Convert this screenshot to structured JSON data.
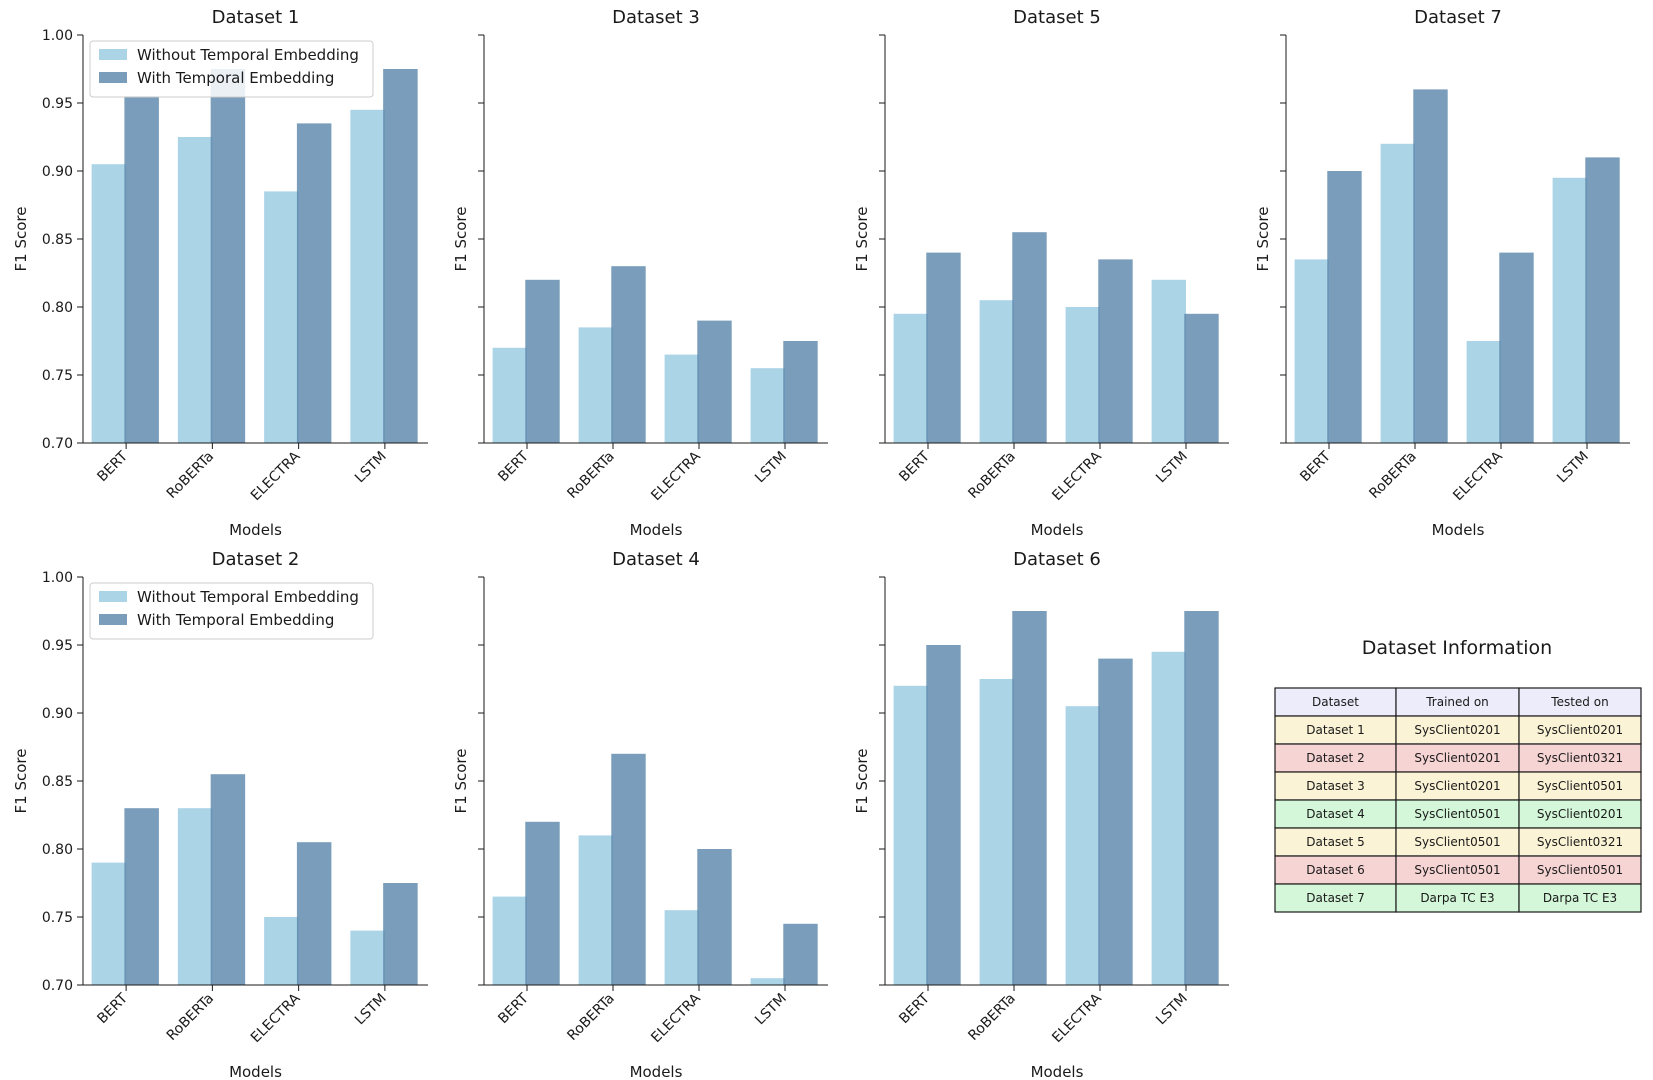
{
  "chart_data": [
    {
      "type": "bar",
      "title": "Dataset 1",
      "categories": [
        "BERT",
        "RoBERTa",
        "ELECTRA",
        "LSTM"
      ],
      "series": [
        {
          "name": "Without Temporal Embedding",
          "values": [
            0.905,
            0.925,
            0.885,
            0.945
          ]
        },
        {
          "name": "With Temporal Embedding",
          "values": [
            0.955,
            0.975,
            0.935,
            0.975
          ]
        }
      ],
      "xlabel": "Models",
      "ylabel": "F1 Score",
      "ylim": [
        0.7,
        1.0
      ],
      "yticks": [
        "0.70",
        "0.75",
        "0.80",
        "0.85",
        "0.90",
        "0.95",
        "1.00"
      ],
      "legend": "top-left"
    },
    {
      "type": "bar",
      "title": "Dataset 3",
      "categories": [
        "BERT",
        "RoBERTa",
        "ELECTRA",
        "LSTM"
      ],
      "series": [
        {
          "name": "Without Temporal Embedding",
          "values": [
            0.77,
            0.785,
            0.765,
            0.755
          ]
        },
        {
          "name": "With Temporal Embedding",
          "values": [
            0.82,
            0.83,
            0.79,
            0.775
          ]
        }
      ],
      "xlabel": "Models",
      "ylabel": "F1 Score",
      "ylim": [
        0.7,
        1.0
      ]
    },
    {
      "type": "bar",
      "title": "Dataset 5",
      "categories": [
        "BERT",
        "RoBERTa",
        "ELECTRA",
        "LSTM"
      ],
      "series": [
        {
          "name": "Without Temporal Embedding",
          "values": [
            0.795,
            0.805,
            0.8,
            0.82
          ]
        },
        {
          "name": "With Temporal Embedding",
          "values": [
            0.84,
            0.855,
            0.835,
            0.795
          ]
        }
      ],
      "xlabel": "Models",
      "ylabel": "F1 Score",
      "ylim": [
        0.7,
        1.0
      ]
    },
    {
      "type": "bar",
      "title": "Dataset 7",
      "categories": [
        "BERT",
        "RoBERTa",
        "ELECTRA",
        "LSTM"
      ],
      "series": [
        {
          "name": "Without Temporal Embedding",
          "values": [
            0.835,
            0.92,
            0.775,
            0.895
          ]
        },
        {
          "name": "With Temporal Embedding",
          "values": [
            0.9,
            0.96,
            0.84,
            0.91
          ]
        }
      ],
      "xlabel": "Models",
      "ylabel": "F1 Score",
      "ylim": [
        0.7,
        1.0
      ]
    },
    {
      "type": "bar",
      "title": "Dataset 2",
      "categories": [
        "BERT",
        "RoBERTa",
        "ELECTRA",
        "LSTM"
      ],
      "series": [
        {
          "name": "Without Temporal Embedding",
          "values": [
            0.79,
            0.83,
            0.75,
            0.74
          ]
        },
        {
          "name": "With Temporal Embedding",
          "values": [
            0.83,
            0.855,
            0.805,
            0.775
          ]
        }
      ],
      "xlabel": "Models",
      "ylabel": "F1 Score",
      "ylim": [
        0.7,
        1.0
      ],
      "yticks": [
        "0.70",
        "0.75",
        "0.80",
        "0.85",
        "0.90",
        "0.95",
        "1.00"
      ],
      "legend": "top-left"
    },
    {
      "type": "bar",
      "title": "Dataset 4",
      "categories": [
        "BERT",
        "RoBERTa",
        "ELECTRA",
        "LSTM"
      ],
      "series": [
        {
          "name": "Without Temporal Embedding",
          "values": [
            0.765,
            0.81,
            0.755,
            0.705
          ]
        },
        {
          "name": "With Temporal Embedding",
          "values": [
            0.82,
            0.87,
            0.8,
            0.745
          ]
        }
      ],
      "xlabel": "Models",
      "ylabel": "F1 Score",
      "ylim": [
        0.7,
        1.0
      ]
    },
    {
      "type": "bar",
      "title": "Dataset 6",
      "categories": [
        "BERT",
        "RoBERTa",
        "ELECTRA",
        "LSTM"
      ],
      "series": [
        {
          "name": "Without Temporal Embedding",
          "values": [
            0.92,
            0.925,
            0.905,
            0.945
          ]
        },
        {
          "name": "With Temporal Embedding",
          "values": [
            0.95,
            0.975,
            0.94,
            0.975
          ]
        }
      ],
      "xlabel": "Models",
      "ylabel": "F1 Score",
      "ylim": [
        0.7,
        1.0
      ]
    },
    {
      "type": "table",
      "title": "Dataset Information",
      "columns": [
        "Dataset",
        "Trained on",
        "Tested on"
      ],
      "rows": [
        [
          "Dataset 1",
          "SysClient0201",
          "SysClient0201"
        ],
        [
          "Dataset 2",
          "SysClient0201",
          "SysClient0321"
        ],
        [
          "Dataset 3",
          "SysClient0201",
          "SysClient0501"
        ],
        [
          "Dataset 4",
          "SysClient0501",
          "SysClient0201"
        ],
        [
          "Dataset 5",
          "SysClient0501",
          "SysClient0321"
        ],
        [
          "Dataset 6",
          "SysClient0501",
          "SysClient0501"
        ],
        [
          "Dataset 7",
          "Darpa TC E3",
          "Darpa TC E3"
        ]
      ],
      "header_color": "#ececfb",
      "row_colors": [
        "#fbf3d5",
        "#f7d4d4",
        "#fbf3d5",
        "#d3f7d8",
        "#fbf3d5",
        "#f7d4d4",
        "#d3f7d8"
      ]
    }
  ],
  "colors": {
    "without": "#9ccde3",
    "with": "#5c87ab",
    "axis": "#1a1a1a"
  }
}
